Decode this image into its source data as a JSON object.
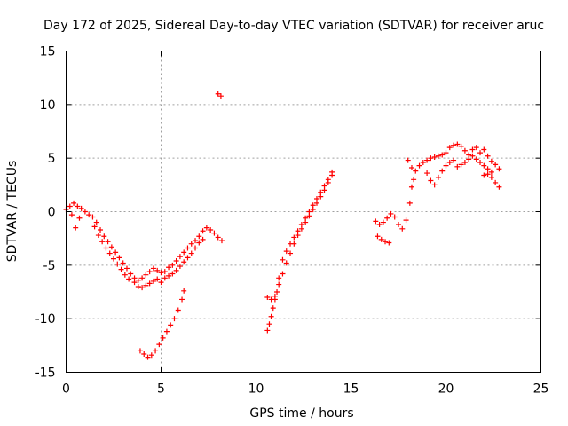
{
  "chart_data": {
    "type": "scatter",
    "title": "Day 172 of 2025, Sidereal Day-to-day VTEC variation (SDTVAR) for receiver aruc",
    "xlabel": "GPS time / hours",
    "ylabel": "SDTVAR / TECUs",
    "xlim": [
      0,
      25
    ],
    "ylim": [
      -15,
      15
    ],
    "xticks": [
      0,
      5,
      10,
      15,
      20,
      25
    ],
    "yticks": [
      -15,
      -10,
      -5,
      0,
      5,
      10,
      15
    ],
    "grid": true,
    "marker": "+",
    "color": "#ff0000",
    "series": [
      {
        "name": "SDTVAR",
        "points": [
          [
            0.0,
            0.2
          ],
          [
            0.2,
            0.5
          ],
          [
            0.4,
            0.8
          ],
          [
            0.6,
            0.5
          ],
          [
            0.8,
            0.3
          ],
          [
            1.0,
            0.0
          ],
          [
            1.2,
            -0.3
          ],
          [
            0.3,
            -0.3
          ],
          [
            0.5,
            -1.5
          ],
          [
            0.7,
            -0.6
          ],
          [
            1.4,
            -0.5
          ],
          [
            1.6,
            -1.0
          ],
          [
            1.8,
            -1.7
          ],
          [
            2.0,
            -2.3
          ],
          [
            2.2,
            -2.8
          ],
          [
            2.4,
            -3.3
          ],
          [
            2.6,
            -3.8
          ],
          [
            2.8,
            -4.3
          ],
          [
            3.0,
            -4.8
          ],
          [
            3.2,
            -5.3
          ],
          [
            3.4,
            -5.8
          ],
          [
            3.6,
            -6.2
          ],
          [
            3.8,
            -6.4
          ],
          [
            4.0,
            -6.2
          ],
          [
            4.2,
            -5.9
          ],
          [
            4.4,
            -5.6
          ],
          [
            4.6,
            -5.3
          ],
          [
            4.8,
            -5.5
          ],
          [
            5.0,
            -5.7
          ],
          [
            5.2,
            -5.6
          ],
          [
            5.4,
            -5.2
          ],
          [
            5.6,
            -5.0
          ],
          [
            5.8,
            -4.6
          ],
          [
            6.0,
            -4.2
          ],
          [
            6.2,
            -3.8
          ],
          [
            6.4,
            -3.4
          ],
          [
            6.6,
            -3.0
          ],
          [
            6.8,
            -2.7
          ],
          [
            7.0,
            -2.3
          ],
          [
            7.2,
            -1.8
          ],
          [
            7.4,
            -1.5
          ],
          [
            7.6,
            -1.7
          ],
          [
            7.8,
            -2.0
          ],
          [
            8.0,
            -2.4
          ],
          [
            8.2,
            -2.7
          ],
          [
            3.6,
            -6.6
          ],
          [
            3.8,
            -7.0
          ],
          [
            4.0,
            -7.1
          ],
          [
            4.2,
            -6.9
          ],
          [
            4.4,
            -6.7
          ],
          [
            4.6,
            -6.5
          ],
          [
            4.8,
            -6.3
          ],
          [
            5.0,
            -6.6
          ],
          [
            5.2,
            -6.2
          ],
          [
            5.4,
            -6.0
          ],
          [
            5.6,
            -5.8
          ],
          [
            5.8,
            -5.5
          ],
          [
            6.0,
            -5.1
          ],
          [
            6.2,
            -4.7
          ],
          [
            6.4,
            -4.3
          ],
          [
            6.6,
            -3.9
          ],
          [
            6.8,
            -3.4
          ],
          [
            7.0,
            -2.9
          ],
          [
            7.2,
            -2.6
          ],
          [
            1.5,
            -1.4
          ],
          [
            1.7,
            -2.2
          ],
          [
            1.9,
            -2.8
          ],
          [
            2.1,
            -3.4
          ],
          [
            2.3,
            -3.9
          ],
          [
            2.5,
            -4.4
          ],
          [
            2.7,
            -4.9
          ],
          [
            2.9,
            -5.4
          ],
          [
            3.1,
            -5.9
          ],
          [
            3.3,
            -6.3
          ],
          [
            3.9,
            -13.0
          ],
          [
            4.1,
            -13.3
          ],
          [
            4.3,
            -13.6
          ],
          [
            4.5,
            -13.4
          ],
          [
            4.7,
            -13.0
          ],
          [
            4.9,
            -12.4
          ],
          [
            5.1,
            -11.8
          ],
          [
            5.3,
            -11.2
          ],
          [
            5.5,
            -10.6
          ],
          [
            5.7,
            -10.0
          ],
          [
            5.9,
            -9.2
          ],
          [
            6.1,
            -8.2
          ],
          [
            6.2,
            -7.4
          ],
          [
            8.0,
            11.0
          ],
          [
            8.15,
            10.8
          ],
          [
            10.6,
            -11.1
          ],
          [
            10.7,
            -10.5
          ],
          [
            10.8,
            -9.8
          ],
          [
            10.9,
            -9.0
          ],
          [
            11.0,
            -8.2
          ],
          [
            11.1,
            -7.5
          ],
          [
            11.2,
            -6.8
          ],
          [
            11.4,
            -5.8
          ],
          [
            11.6,
            -4.8
          ],
          [
            11.8,
            -3.9
          ],
          [
            12.0,
            -3.0
          ],
          [
            12.2,
            -2.2
          ],
          [
            12.4,
            -1.6
          ],
          [
            12.6,
            -1.0
          ],
          [
            12.8,
            -0.4
          ],
          [
            13.0,
            0.2
          ],
          [
            13.2,
            0.8
          ],
          [
            13.4,
            1.4
          ],
          [
            13.6,
            2.0
          ],
          [
            13.8,
            2.7
          ],
          [
            14.0,
            3.4
          ],
          [
            10.6,
            -8.0
          ],
          [
            10.8,
            -8.2
          ],
          [
            11.0,
            -7.9
          ],
          [
            11.2,
            -6.2
          ],
          [
            11.4,
            -4.5
          ],
          [
            11.6,
            -3.7
          ],
          [
            11.8,
            -3.0
          ],
          [
            12.0,
            -2.4
          ],
          [
            12.2,
            -1.8
          ],
          [
            12.4,
            -1.2
          ],
          [
            12.6,
            -0.6
          ],
          [
            12.8,
            0.0
          ],
          [
            13.0,
            0.6
          ],
          [
            13.2,
            1.2
          ],
          [
            13.4,
            1.8
          ],
          [
            13.6,
            2.4
          ],
          [
            13.8,
            3.0
          ],
          [
            14.0,
            3.7
          ],
          [
            16.3,
            -0.9
          ],
          [
            16.5,
            -1.2
          ],
          [
            16.7,
            -1.0
          ],
          [
            16.9,
            -0.6
          ],
          [
            17.1,
            -0.2
          ],
          [
            17.3,
            -0.5
          ],
          [
            17.5,
            -1.2
          ],
          [
            17.7,
            -1.6
          ],
          [
            17.9,
            -0.8
          ],
          [
            18.1,
            0.8
          ],
          [
            16.4,
            -2.3
          ],
          [
            16.6,
            -2.6
          ],
          [
            16.8,
            -2.8
          ],
          [
            17.0,
            -2.9
          ],
          [
            18.2,
            2.3
          ],
          [
            18.3,
            3.0
          ],
          [
            18.4,
            3.8
          ],
          [
            18.6,
            4.3
          ],
          [
            18.8,
            4.6
          ],
          [
            19.0,
            4.8
          ],
          [
            19.2,
            5.0
          ],
          [
            19.4,
            5.1
          ],
          [
            19.6,
            5.2
          ],
          [
            19.8,
            5.3
          ],
          [
            18.0,
            4.8
          ],
          [
            18.2,
            4.1
          ],
          [
            19.0,
            3.6
          ],
          [
            19.2,
            2.9
          ],
          [
            19.4,
            2.5
          ],
          [
            19.6,
            3.2
          ],
          [
            19.8,
            3.8
          ],
          [
            20.0,
            4.3
          ],
          [
            20.2,
            4.6
          ],
          [
            20.4,
            4.8
          ],
          [
            20.0,
            5.5
          ],
          [
            20.2,
            6.0
          ],
          [
            20.4,
            6.2
          ],
          [
            20.6,
            6.3
          ],
          [
            20.8,
            6.1
          ],
          [
            21.0,
            5.7
          ],
          [
            21.2,
            5.3
          ],
          [
            21.4,
            5.8
          ],
          [
            21.6,
            6.0
          ],
          [
            21.8,
            5.5
          ],
          [
            20.6,
            4.2
          ],
          [
            20.8,
            4.4
          ],
          [
            21.0,
            4.6
          ],
          [
            21.2,
            4.9
          ],
          [
            21.4,
            5.2
          ],
          [
            21.6,
            4.9
          ],
          [
            21.8,
            4.6
          ],
          [
            22.0,
            4.3
          ],
          [
            22.2,
            4.0
          ],
          [
            22.4,
            3.7
          ],
          [
            22.0,
            5.8
          ],
          [
            22.2,
            5.2
          ],
          [
            22.4,
            4.7
          ],
          [
            22.6,
            4.4
          ],
          [
            22.8,
            4.0
          ],
          [
            22.6,
            2.7
          ],
          [
            22.8,
            2.3
          ],
          [
            22.4,
            3.2
          ],
          [
            22.2,
            3.5
          ],
          [
            22.0,
            3.4
          ]
        ]
      }
    ]
  }
}
